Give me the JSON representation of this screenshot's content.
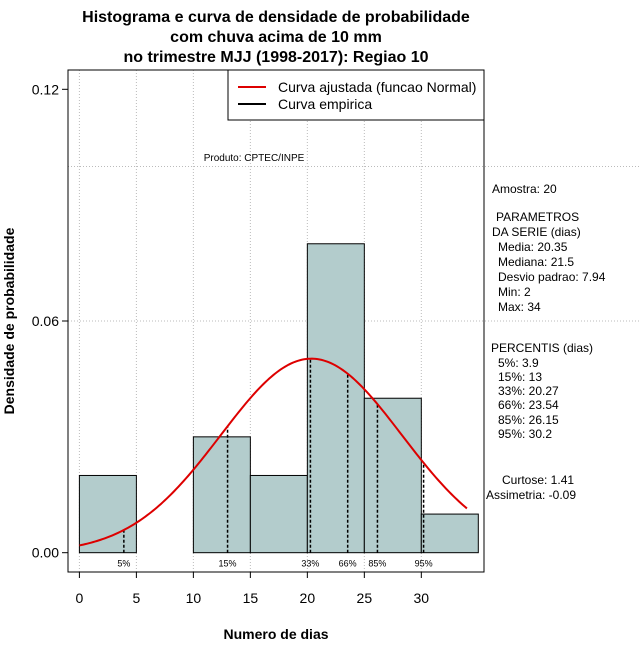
{
  "chart_data": {
    "type": "histogram",
    "title_lines": [
      "Histograma e curva de densidade de probabilidade",
      "com chuva acima de 10 mm",
      "no trimestre MJJ (1998-2017): Regiao 10"
    ],
    "xlabel": "Numero de dias",
    "ylabel": "Densidade de probabilidade",
    "xlim": [
      -1,
      35.5
    ],
    "ylim": [
      -0.005,
      0.125
    ],
    "x_ticks": [
      0,
      5,
      10,
      15,
      20,
      25,
      30
    ],
    "y_ticks": [
      0.0,
      0.06,
      0.12
    ],
    "y_tick_labels": [
      "0.00",
      "0.06",
      "0.12"
    ],
    "grid_x": [
      0,
      5,
      10,
      15,
      20,
      25,
      30
    ],
    "grid_y": [
      0.06,
      0.1
    ],
    "bins": [
      {
        "from": 0,
        "to": 5,
        "density": 0.02
      },
      {
        "from": 5,
        "to": 10,
        "density": 0.0
      },
      {
        "from": 10,
        "to": 15,
        "density": 0.03
      },
      {
        "from": 15,
        "to": 20,
        "density": 0.02
      },
      {
        "from": 20,
        "to": 25,
        "density": 0.08
      },
      {
        "from": 25,
        "to": 30,
        "density": 0.04
      },
      {
        "from": 30,
        "to": 35,
        "density": 0.01
      }
    ],
    "normal_fit": {
      "mean": 20.35,
      "sd": 7.94,
      "x_from": 0,
      "x_to": 34,
      "color": "#dd0000"
    },
    "bar_color": "#b3cccc",
    "percentiles": [
      {
        "label": "5%",
        "value": 3.9
      },
      {
        "label": "15%",
        "value": 13
      },
      {
        "label": "33%",
        "value": 20.27
      },
      {
        "label": "66%",
        "value": 23.54
      },
      {
        "label": "85%",
        "value": 26.15
      },
      {
        "label": "95%",
        "value": 30.2
      }
    ],
    "legend": [
      {
        "label": "Curva ajustada (funcao Normal)",
        "color": "#dd0000"
      },
      {
        "label": "Curva empirica",
        "color": "#000000"
      }
    ],
    "product_label": "Produto: CPTEC/INPE"
  },
  "side_panel": {
    "amostra": "Amostra: 20",
    "parametros_title1": "PARAMETROS",
    "parametros_title2": "DA SERIE (dias)",
    "media": "Media: 20.35",
    "mediana": "Mediana: 21.5",
    "desvio": "Desvio padrao: 7.94",
    "min": "Min: 2",
    "max": "Max: 34",
    "percentis_title": "PERCENTIS (dias)",
    "p5": "5%: 3.9",
    "p15": "15%: 13",
    "p33": "33%: 20.27",
    "p66": "66%: 23.54",
    "p85": "85%: 26.15",
    "p95": "95%: 30.2",
    "curtose": "Curtose: 1.41",
    "assimetria": "Assimetria: -0.09"
  }
}
